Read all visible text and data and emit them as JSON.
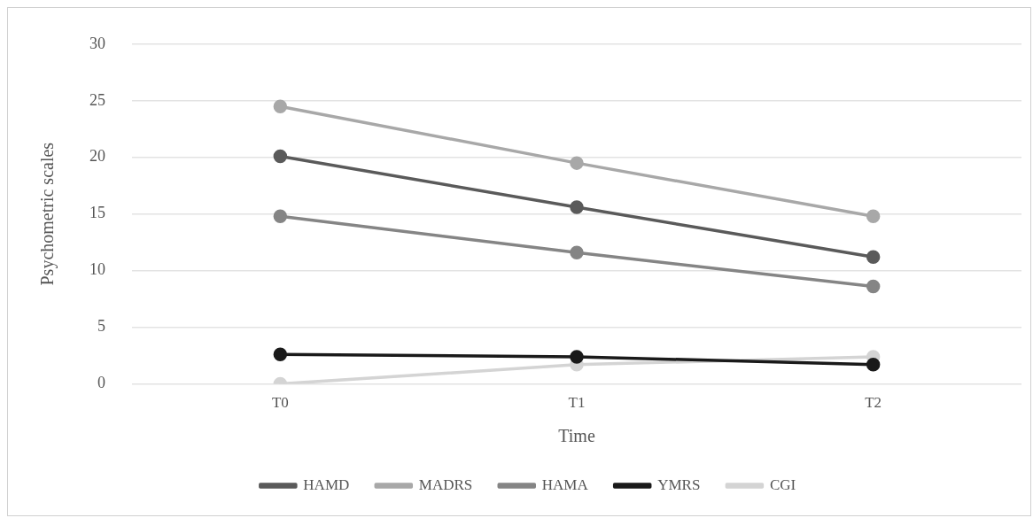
{
  "chart_data": {
    "type": "line",
    "xlabel": "Time",
    "ylabel": "Psychometric scales",
    "categories": [
      "T0",
      "T1",
      "T2"
    ],
    "series": [
      {
        "name": "HAMD",
        "color": "#5a5a5a",
        "values": [
          20.1,
          15.6,
          11.2
        ]
      },
      {
        "name": "MADRS",
        "color": "#a8a8a8",
        "values": [
          24.5,
          19.5,
          14.8
        ]
      },
      {
        "name": "HAMA",
        "color": "#858585",
        "values": [
          14.8,
          11.6,
          8.6
        ]
      },
      {
        "name": "YMRS",
        "color": "#1a1a1a",
        "values": [
          2.6,
          2.4,
          1.7
        ]
      },
      {
        "name": "CGI",
        "color": "#d4d4d4",
        "values": [
          0,
          1.7,
          2.4
        ]
      }
    ],
    "ylim": [
      0,
      30
    ],
    "yticks": [
      0,
      5,
      10,
      15,
      20,
      25,
      30
    ],
    "grid": "y",
    "legend": "bottom",
    "marker": "circle",
    "line_style": "solid"
  }
}
